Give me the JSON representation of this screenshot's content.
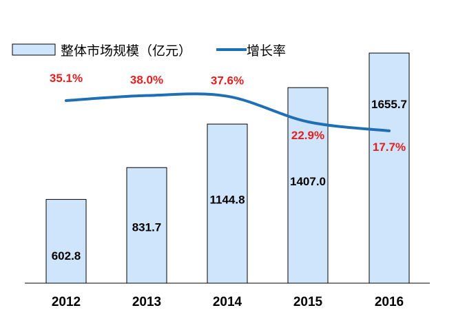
{
  "chart_data": {
    "type": "bar",
    "categories": [
      "2012",
      "2013",
      "2014",
      "2015",
      "2016"
    ],
    "series": [
      {
        "name": "整体市场规模（亿元）",
        "type": "bar",
        "axis": "left",
        "values": [
          602.8,
          831.7,
          1144.8,
          1407.0,
          1655.7
        ],
        "labels": [
          "602.8",
          "831.7",
          "1144.8",
          "1407.0",
          "1655.7"
        ]
      },
      {
        "name": "增长率",
        "type": "line",
        "axis": "right",
        "values": [
          35.1,
          38.0,
          37.6,
          22.9,
          17.7
        ],
        "labels": [
          "35.1%",
          "38.0%",
          "37.6%",
          "22.9%",
          "17.7%"
        ]
      }
    ],
    "title": "",
    "xlabel": "",
    "ylabel": "",
    "ylim": [
      0,
      1750
    ],
    "y2lim": [
      -70,
      70
    ],
    "grid": false,
    "legend_position": "top-left",
    "colors": {
      "bar_fill": "#cfe5fb",
      "bar_stroke": "#000000",
      "line": "#1f6fb5",
      "rate_label": "#e21f1f"
    }
  }
}
